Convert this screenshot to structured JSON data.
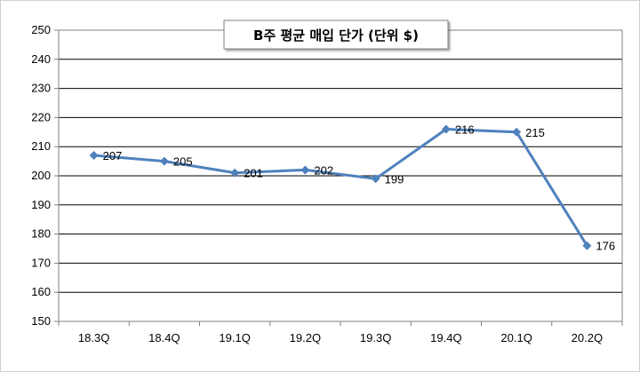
{
  "chart_data": {
    "type": "line",
    "title": "B주 평균 매입 단가 (단위 $)",
    "categories": [
      "18.3Q",
      "18.4Q",
      "19.1Q",
      "19.2Q",
      "19.3Q",
      "19.4Q",
      "20.1Q",
      "20.2Q"
    ],
    "series": [
      {
        "values": [
          207,
          205,
          201,
          202,
          199,
          216,
          215,
          176
        ]
      }
    ],
    "data_labels": [
      "207",
      "205",
      "201",
      "202",
      "199",
      "216",
      "215",
      "176"
    ],
    "y_ticks": [
      "150",
      "160",
      "170",
      "180",
      "190",
      "200",
      "210",
      "220",
      "230",
      "240",
      "250"
    ],
    "ylim": [
      150,
      250
    ],
    "grid": true,
    "legend": "none",
    "colors": {
      "line": "#4F81BD",
      "grid": "#000000",
      "plot_border": "#808080"
    }
  }
}
